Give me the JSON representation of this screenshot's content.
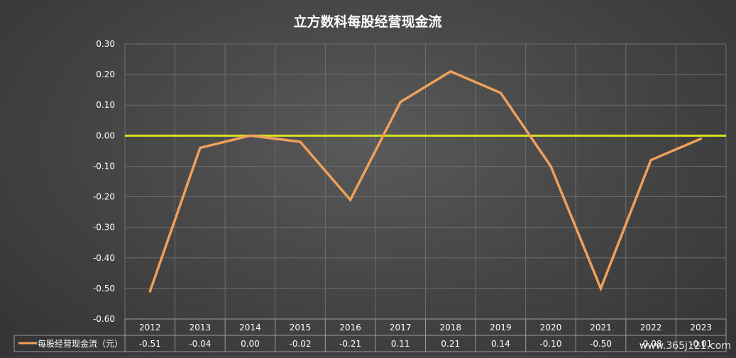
{
  "chart_data": {
    "type": "line",
    "title": "立方数科每股经营现金流",
    "categories": [
      "2012",
      "2013",
      "2014",
      "2015",
      "2016",
      "2017",
      "2018",
      "2019",
      "2020",
      "2021",
      "2022",
      "2023"
    ],
    "series": [
      {
        "name": "每股经营现金流（元）",
        "values": [
          -0.51,
          -0.04,
          0.0,
          -0.02,
          -0.21,
          0.11,
          0.21,
          0.14,
          -0.1,
          -0.5,
          -0.08,
          -0.01
        ],
        "labels": [
          "-0.51",
          "-0.04",
          "0.00",
          "-0.02",
          "-0.21",
          "0.11",
          "0.21",
          "0.14",
          "-0.10",
          "-0.50",
          "-0.08",
          "-0.01"
        ]
      }
    ],
    "ylim": [
      -0.6,
      0.3
    ],
    "yticks": [
      "0.30",
      "0.20",
      "0.10",
      "0.00",
      "-0.10",
      "-0.20",
      "-0.30",
      "-0.40",
      "-0.50",
      "-0.60"
    ],
    "reference_line": 0,
    "grid": true,
    "data_table": true,
    "colors": {
      "series": "#f0a05a",
      "reference": "#d9e021",
      "grid": "#6e6e6e",
      "table": "#9a9a9a"
    },
    "xlabel": "",
    "ylabel": ""
  },
  "watermark": "www.365j121.com"
}
